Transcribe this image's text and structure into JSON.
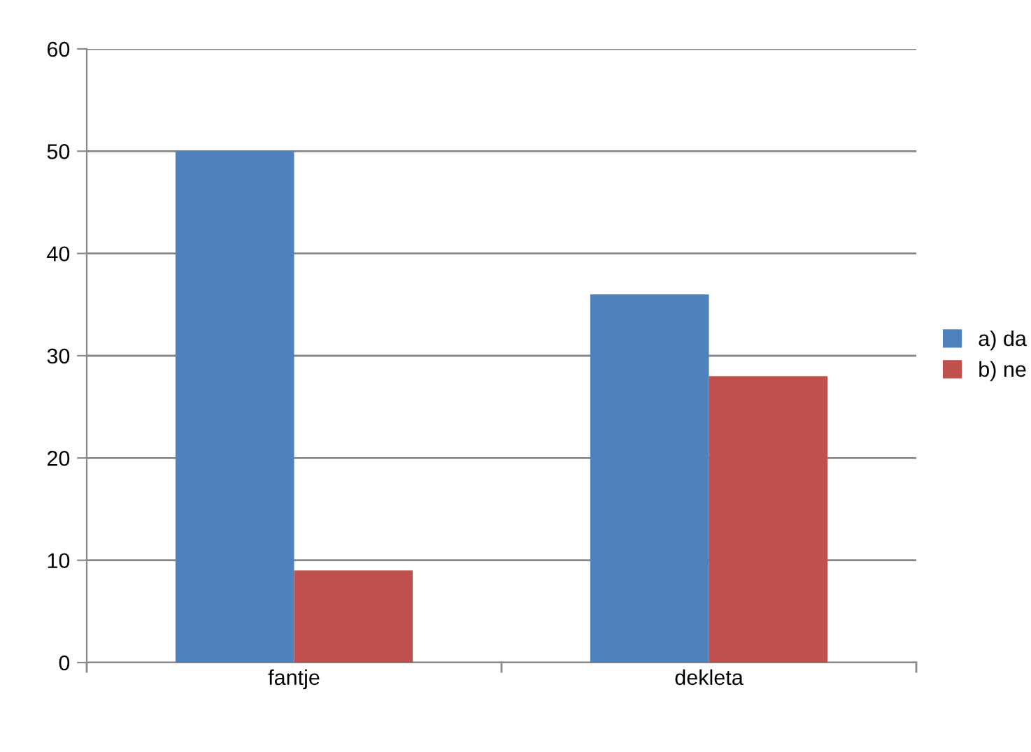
{
  "chart_data": {
    "type": "bar",
    "categories": [
      "fantje",
      "dekleta"
    ],
    "series": [
      {
        "name": "a) da",
        "color": "#4f81bd",
        "values": [
          50,
          36
        ]
      },
      {
        "name": "b) ne",
        "color": "#c0504d",
        "values": [
          9,
          28
        ]
      }
    ],
    "ylim": [
      0,
      60
    ],
    "yticks": [
      0,
      10,
      20,
      30,
      40,
      50,
      60
    ],
    "grid": "y",
    "legend": "right"
  }
}
